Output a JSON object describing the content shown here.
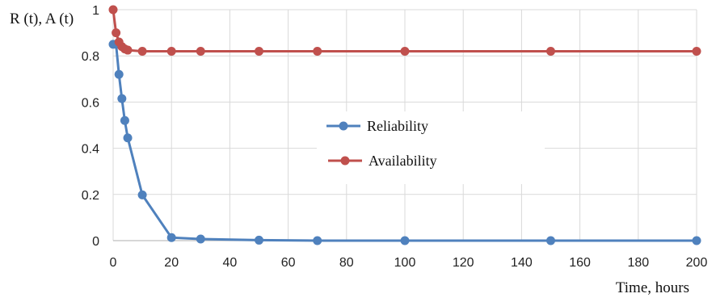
{
  "chart_data": {
    "type": "line",
    "title": "",
    "xlabel": "Time, hours",
    "ylabel": "R (t), A (t)",
    "xlim": [
      0,
      200
    ],
    "ylim": [
      0,
      1
    ],
    "x_ticks": [
      0,
      20,
      40,
      60,
      80,
      100,
      120,
      140,
      160,
      180,
      200
    ],
    "y_ticks": [
      0,
      0.2,
      0.4,
      0.6,
      0.8,
      1
    ],
    "grid": true,
    "legend_position": "center",
    "series": [
      {
        "name": "Reliability",
        "color": "#4f81bd",
        "x": [
          0,
          1,
          2,
          3,
          4,
          5,
          10,
          20,
          30,
          50,
          70,
          100,
          150,
          200
        ],
        "y": [
          0.85,
          0.85,
          0.72,
          0.615,
          0.52,
          0.445,
          0.198,
          0.013,
          0.007,
          0.002,
          0,
          0,
          0,
          0
        ]
      },
      {
        "name": "Availability",
        "color": "#c0504d",
        "x": [
          0,
          1,
          2,
          3,
          4,
          5,
          10,
          20,
          30,
          50,
          70,
          100,
          150,
          200
        ],
        "y": [
          1,
          0.9,
          0.86,
          0.84,
          0.83,
          0.825,
          0.82,
          0.82,
          0.82,
          0.82,
          0.82,
          0.82,
          0.82,
          0.82
        ]
      }
    ]
  }
}
